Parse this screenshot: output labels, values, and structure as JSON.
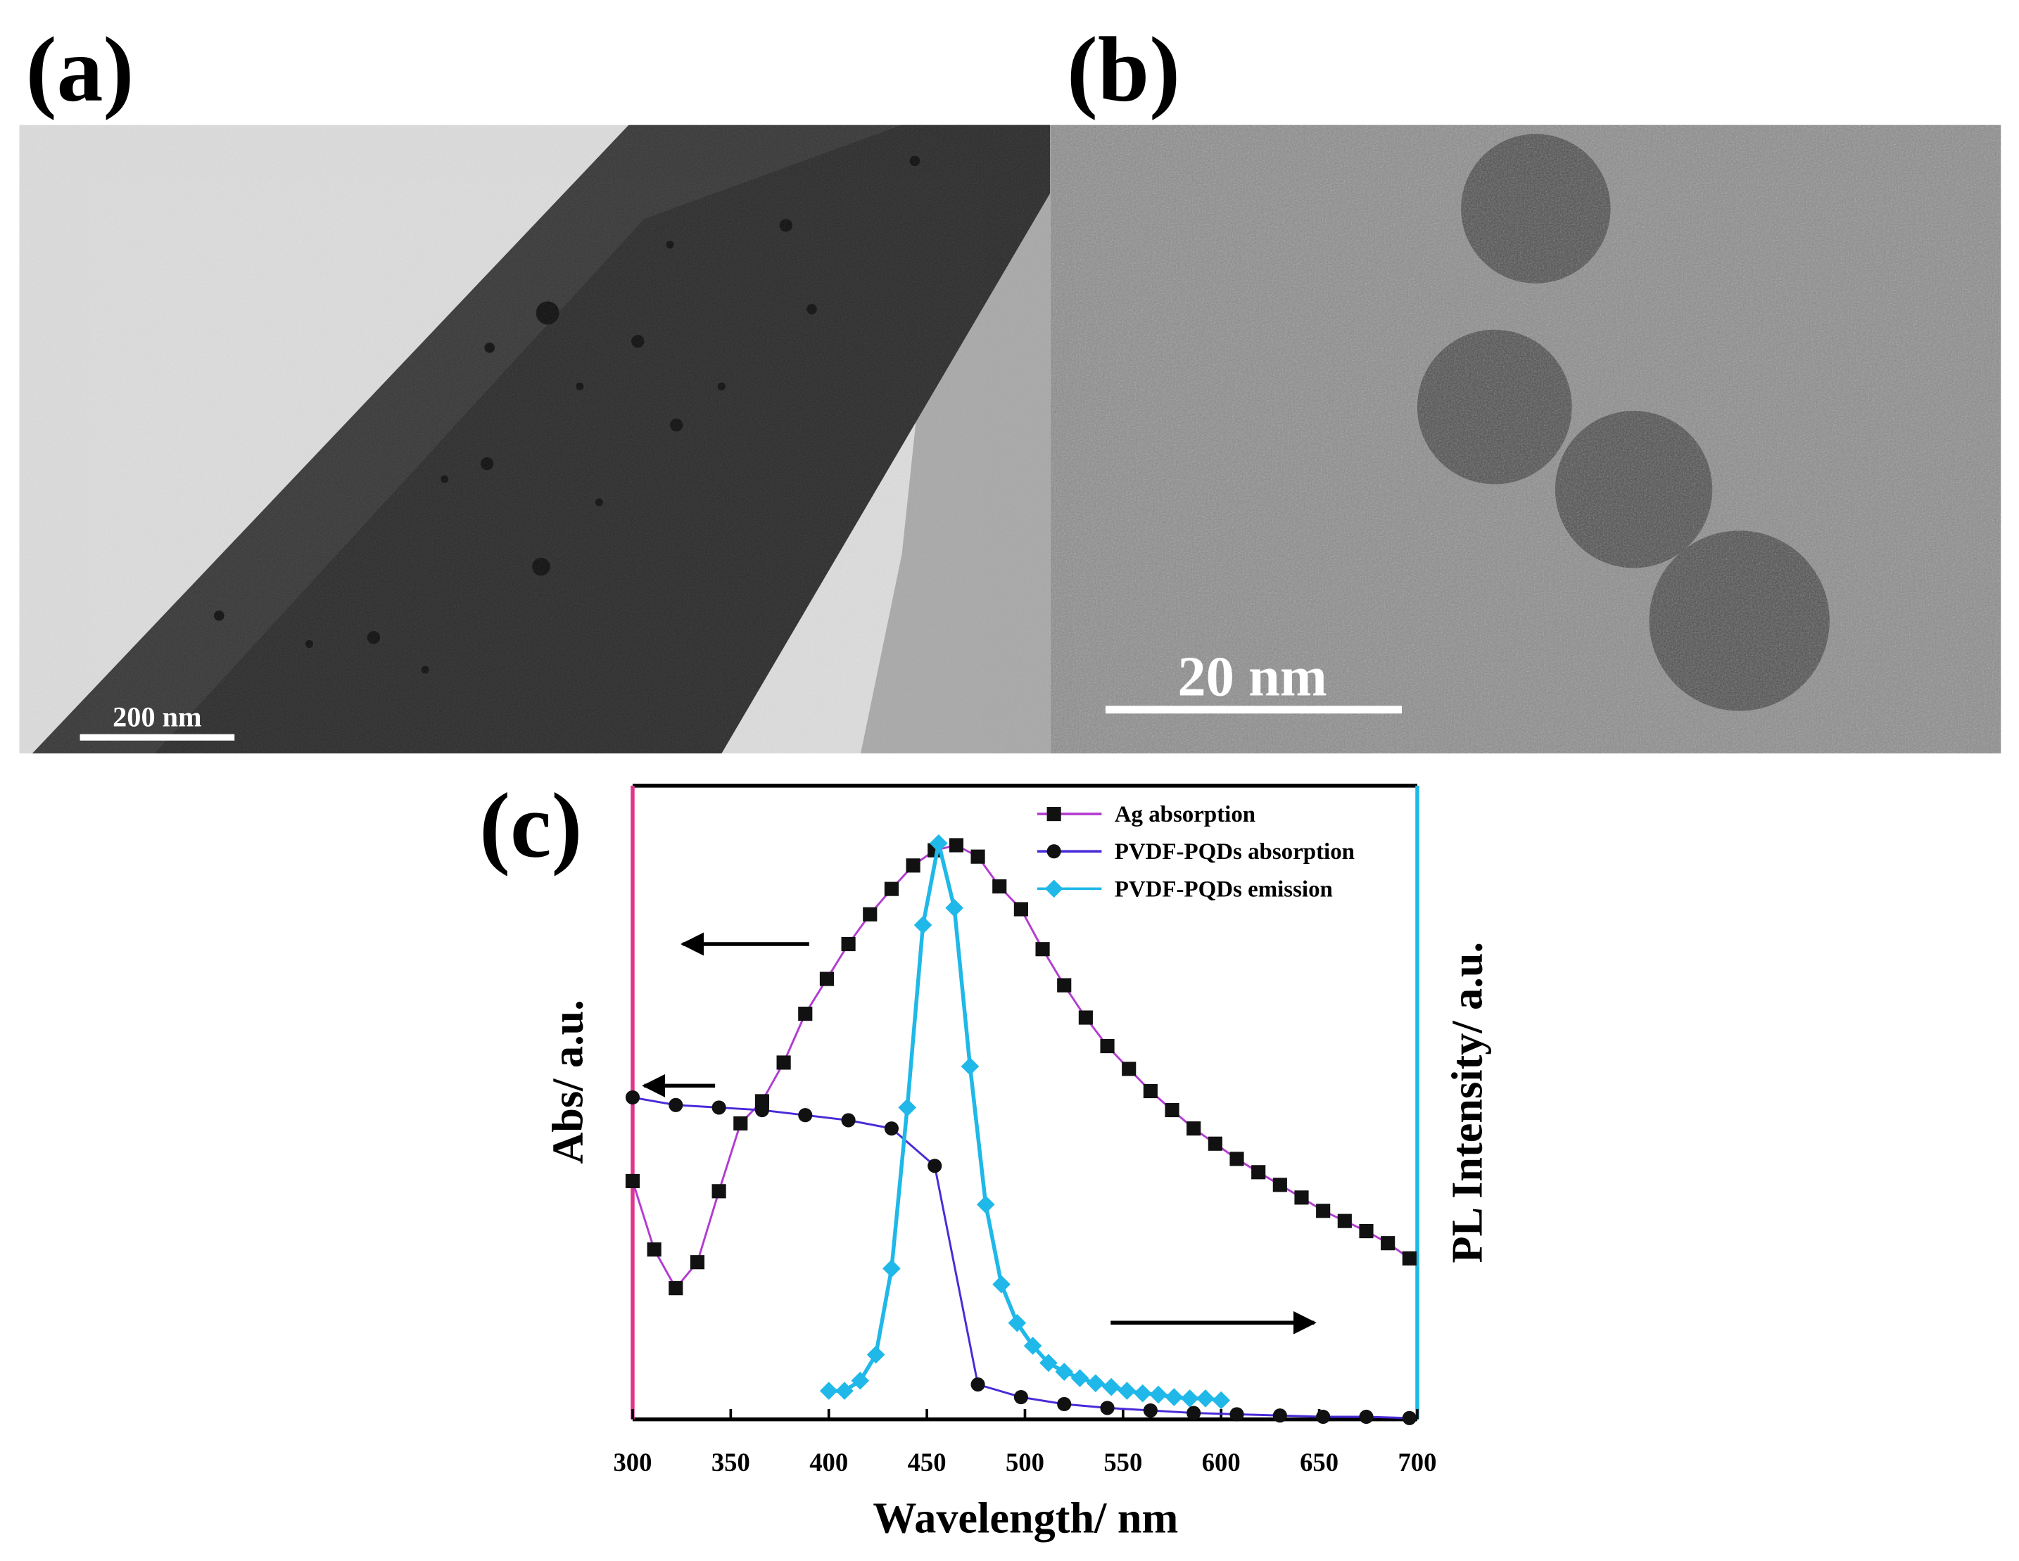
{
  "panels": {
    "a": {
      "label": "(a)",
      "scale_bar": "200 nm"
    },
    "b": {
      "label": "(b)",
      "scale_bar": "20 nm"
    }
  },
  "chart_data": {
    "type": "line",
    "panel_label": "(c)",
    "x_label": "Wavelength/ nm",
    "y_label": "Abs/ a.u.",
    "y2_label": "PL Intensity/ a.u.",
    "xlim": [
      300,
      700
    ],
    "xticks": [
      300,
      350,
      400,
      450,
      500,
      550,
      600,
      650,
      700
    ],
    "ylim": [
      0,
      1
    ],
    "y2lim": [
      0,
      1
    ],
    "left_axis_color": "#e0358f",
    "right_axis_color": "#1fb8e8",
    "legend": "upper right",
    "series": [
      {
        "name": "Ag absorption",
        "color": "#b23cd0",
        "marker": "square",
        "marker_color": "#111111",
        "x": [
          300,
          311,
          322,
          333,
          344,
          355,
          366,
          377,
          388,
          399,
          410,
          421,
          432,
          443,
          454,
          465,
          476,
          487,
          498,
          509,
          520,
          531,
          542,
          553,
          564,
          575,
          586,
          597,
          608,
          619,
          630,
          641,
          652,
          663,
          674,
          685,
          696
        ],
        "values": [
          0.376,
          0.268,
          0.207,
          0.248,
          0.36,
          0.467,
          0.502,
          0.563,
          0.64,
          0.695,
          0.75,
          0.797,
          0.837,
          0.874,
          0.898,
          0.906,
          0.888,
          0.841,
          0.805,
          0.742,
          0.685,
          0.634,
          0.589,
          0.553,
          0.518,
          0.488,
          0.459,
          0.435,
          0.411,
          0.39,
          0.37,
          0.35,
          0.329,
          0.313,
          0.297,
          0.278,
          0.254
        ]
      },
      {
        "name": "PVDF-PQDs absorption",
        "color": "#4a2ad8",
        "marker": "circle",
        "marker_color": "#111111",
        "x": [
          300,
          322,
          344,
          366,
          388,
          410,
          432,
          454,
          476,
          498,
          520,
          542,
          564,
          586,
          608,
          630,
          652,
          674,
          696
        ],
        "values": [
          0.508,
          0.496,
          0.492,
          0.488,
          0.48,
          0.472,
          0.459,
          0.4,
          0.055,
          0.035,
          0.024,
          0.018,
          0.014,
          0.01,
          0.008,
          0.006,
          0.004,
          0.004,
          0.002
        ]
      },
      {
        "name": "PVDF-PQDs emission",
        "color": "#1fb8e8",
        "marker": "diamond",
        "marker_color": "#1fb8e8",
        "axis": "y2",
        "x": [
          400,
          408,
          416,
          424,
          432,
          440,
          448,
          456,
          464,
          472,
          480,
          488,
          496,
          504,
          512,
          520,
          528,
          536,
          544,
          552,
          560,
          568,
          576,
          584,
          592,
          600
        ],
        "values": [
          0.045,
          0.045,
          0.061,
          0.102,
          0.238,
          0.492,
          0.78,
          0.909,
          0.807,
          0.557,
          0.339,
          0.213,
          0.152,
          0.116,
          0.089,
          0.075,
          0.065,
          0.057,
          0.051,
          0.045,
          0.041,
          0.039,
          0.035,
          0.033,
          0.033,
          0.03
        ]
      }
    ]
  }
}
